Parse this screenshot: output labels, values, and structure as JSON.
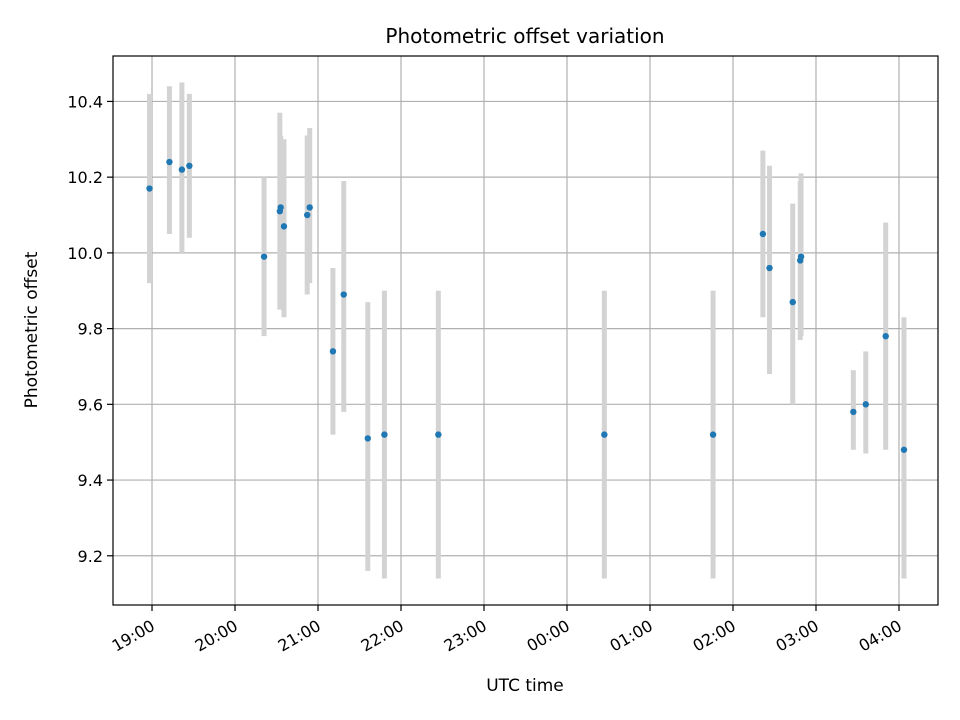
{
  "chart_data": {
    "type": "scatter",
    "title": "Photometric offset variation",
    "xlabel": "UTC time",
    "ylabel": "Photometric offset",
    "grid": true,
    "xlim": [
      -0.47,
      9.47
    ],
    "ylim": [
      9.07,
      10.52
    ],
    "x_ticks": [
      {
        "value": 0,
        "label": "19:00"
      },
      {
        "value": 1,
        "label": "20:00"
      },
      {
        "value": 2,
        "label": "21:00"
      },
      {
        "value": 3,
        "label": "22:00"
      },
      {
        "value": 4,
        "label": "23:00"
      },
      {
        "value": 5,
        "label": "00:00"
      },
      {
        "value": 6,
        "label": "01:00"
      },
      {
        "value": 7,
        "label": "02:00"
      },
      {
        "value": 8,
        "label": "03:00"
      },
      {
        "value": 9,
        "label": "04:00"
      }
    ],
    "y_ticks": [
      {
        "value": 9.2,
        "label": "9.2"
      },
      {
        "value": 9.4,
        "label": "9.4"
      },
      {
        "value": 9.6,
        "label": "9.6"
      },
      {
        "value": 9.8,
        "label": "9.8"
      },
      {
        "value": 10.0,
        "label": "10.0"
      },
      {
        "value": 10.2,
        "label": "10.2"
      },
      {
        "value": 10.4,
        "label": "10.4"
      }
    ],
    "colors": {
      "point": "#1f77b4",
      "errorbar": "#d3d3d3",
      "grid": "#b0b0b0"
    },
    "points": [
      {
        "x": -0.03,
        "y": 10.17,
        "lo": 9.92,
        "hi": 10.42
      },
      {
        "x": 0.21,
        "y": 10.24,
        "lo": 10.05,
        "hi": 10.44
      },
      {
        "x": 0.36,
        "y": 10.22,
        "lo": 10.0,
        "hi": 10.45
      },
      {
        "x": 0.45,
        "y": 10.23,
        "lo": 10.04,
        "hi": 10.42
      },
      {
        "x": 1.35,
        "y": 9.99,
        "lo": 9.78,
        "hi": 10.2
      },
      {
        "x": 1.54,
        "y": 10.11,
        "lo": 9.85,
        "hi": 10.37
      },
      {
        "x": 1.55,
        "y": 10.12,
        "lo": 9.93,
        "hi": 10.31
      },
      {
        "x": 1.59,
        "y": 10.07,
        "lo": 9.83,
        "hi": 10.3
      },
      {
        "x": 1.87,
        "y": 10.1,
        "lo": 9.89,
        "hi": 10.31
      },
      {
        "x": 1.9,
        "y": 10.12,
        "lo": 9.92,
        "hi": 10.33
      },
      {
        "x": 2.18,
        "y": 9.74,
        "lo": 9.52,
        "hi": 9.96
      },
      {
        "x": 2.31,
        "y": 9.89,
        "lo": 9.58,
        "hi": 10.19
      },
      {
        "x": 2.6,
        "y": 9.51,
        "lo": 9.16,
        "hi": 9.87
      },
      {
        "x": 2.8,
        "y": 9.52,
        "lo": 9.14,
        "hi": 9.9
      },
      {
        "x": 3.45,
        "y": 9.52,
        "lo": 9.14,
        "hi": 9.9
      },
      {
        "x": 5.45,
        "y": 9.52,
        "lo": 9.14,
        "hi": 9.9
      },
      {
        "x": 6.76,
        "y": 9.52,
        "lo": 9.14,
        "hi": 9.9
      },
      {
        "x": 7.36,
        "y": 10.05,
        "lo": 9.83,
        "hi": 10.27
      },
      {
        "x": 7.44,
        "y": 9.96,
        "lo": 9.68,
        "hi": 10.23
      },
      {
        "x": 7.72,
        "y": 9.87,
        "lo": 9.6,
        "hi": 10.13
      },
      {
        "x": 7.81,
        "y": 9.98,
        "lo": 9.77,
        "hi": 10.19
      },
      {
        "x": 7.82,
        "y": 9.99,
        "lo": 9.78,
        "hi": 10.21
      },
      {
        "x": 8.45,
        "y": 9.58,
        "lo": 9.48,
        "hi": 9.69
      },
      {
        "x": 8.6,
        "y": 9.6,
        "lo": 9.47,
        "hi": 9.74
      },
      {
        "x": 8.84,
        "y": 9.78,
        "lo": 9.48,
        "hi": 10.08
      },
      {
        "x": 9.06,
        "y": 9.48,
        "lo": 9.14,
        "hi": 9.83
      }
    ]
  }
}
